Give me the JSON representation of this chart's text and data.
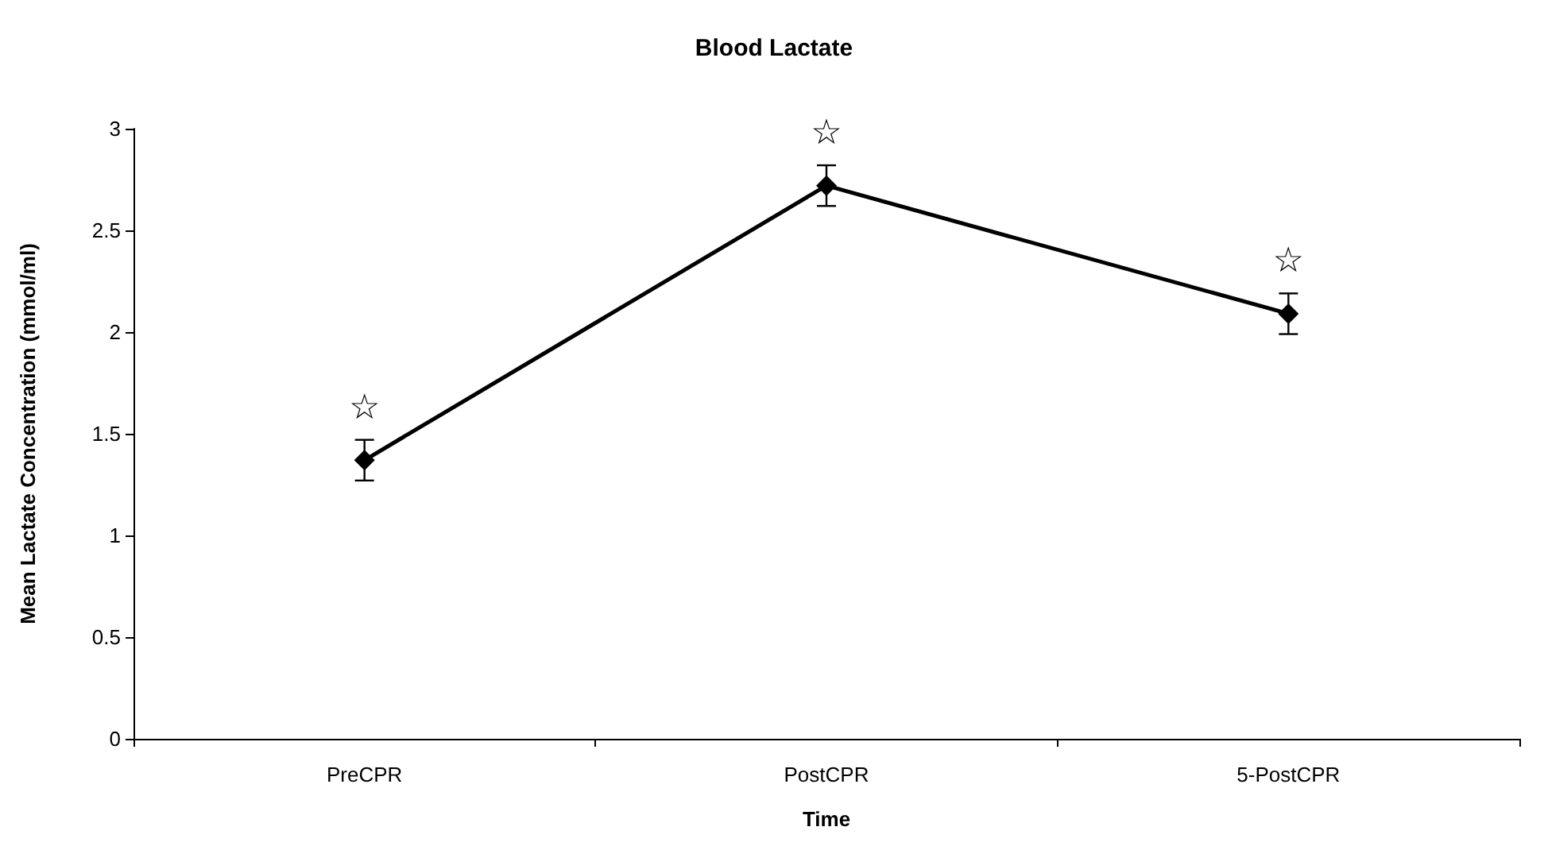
{
  "chart_data": {
    "type": "line",
    "title": "Blood Lactate",
    "xlabel": "Time",
    "ylabel": "Mean Lactate Concentration (mmol/ml)",
    "categories": [
      "PreCPR",
      "PostCPR",
      "5-PostCPR"
    ],
    "series": [
      {
        "color": "#000000",
        "values": [
          1.37,
          2.72,
          2.09
        ],
        "errors": [
          0.1,
          0.1,
          0.1
        ]
      }
    ],
    "ylim": [
      0,
      3
    ],
    "yticks": [
      0,
      0.5,
      1,
      1.5,
      2,
      2.5,
      3
    ],
    "grid": false,
    "marker": "diamond",
    "line_style": "solid",
    "annotations": [
      "☆",
      "☆",
      "☆"
    ]
  }
}
